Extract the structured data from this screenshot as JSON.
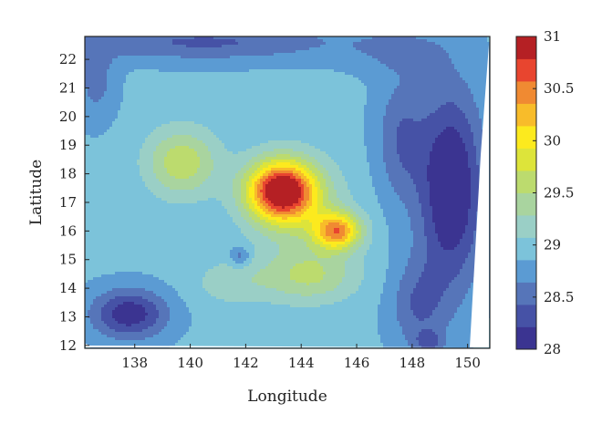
{
  "chart_data": {
    "type": "heatmap",
    "subtype": "filled-contour",
    "title": "",
    "xlabel": "Longitude",
    "ylabel": "Latitude",
    "xlim": [
      136.2,
      150.8
    ],
    "ylim": [
      11.9,
      22.8
    ],
    "x_ticks": [
      138,
      140,
      142,
      144,
      146,
      148,
      150
    ],
    "y_ticks": [
      12,
      13,
      14,
      15,
      16,
      17,
      18,
      19,
      20,
      21,
      22
    ],
    "colorbar": {
      "range": [
        28,
        31
      ],
      "ticks": [
        "28",
        "28.5",
        "29",
        "29.5",
        "30",
        "30.5",
        "31"
      ],
      "levels": 14,
      "colors": [
        "#3b3491",
        "#4652a6",
        "#5675b9",
        "#5b9bd3",
        "#7cc3da",
        "#9acfc6",
        "#a9d49f",
        "#bcdb6e",
        "#dde43a",
        "#fcea1e",
        "#f8bc2a",
        "#f08a32",
        "#e8452f",
        "#b52024"
      ]
    },
    "background_value": 28.9,
    "features": [
      {
        "type": "warm_core",
        "lon": 143.3,
        "lat": 17.3,
        "value": 31.0
      },
      {
        "type": "warm_lobe",
        "lon": 145.2,
        "lat": 16.0,
        "value": 30.3
      },
      {
        "type": "warm_patch",
        "lon": 139.7,
        "lat": 18.4,
        "value": 29.6
      },
      {
        "type": "warm_patch",
        "lon": 144.3,
        "lat": 14.6,
        "value": 29.5
      },
      {
        "type": "cool_region",
        "lon": 149.5,
        "lat": 17.5,
        "value": 28.0
      },
      {
        "type": "cool_region",
        "lon": 137.8,
        "lat": 13.1,
        "value": 28.1
      },
      {
        "type": "cool_spot",
        "lon": 141.8,
        "lat": 15.1,
        "value": 28.6
      },
      {
        "type": "cool_band",
        "lon": 142.0,
        "lat": 22.4,
        "value": 28.5
      }
    ]
  }
}
